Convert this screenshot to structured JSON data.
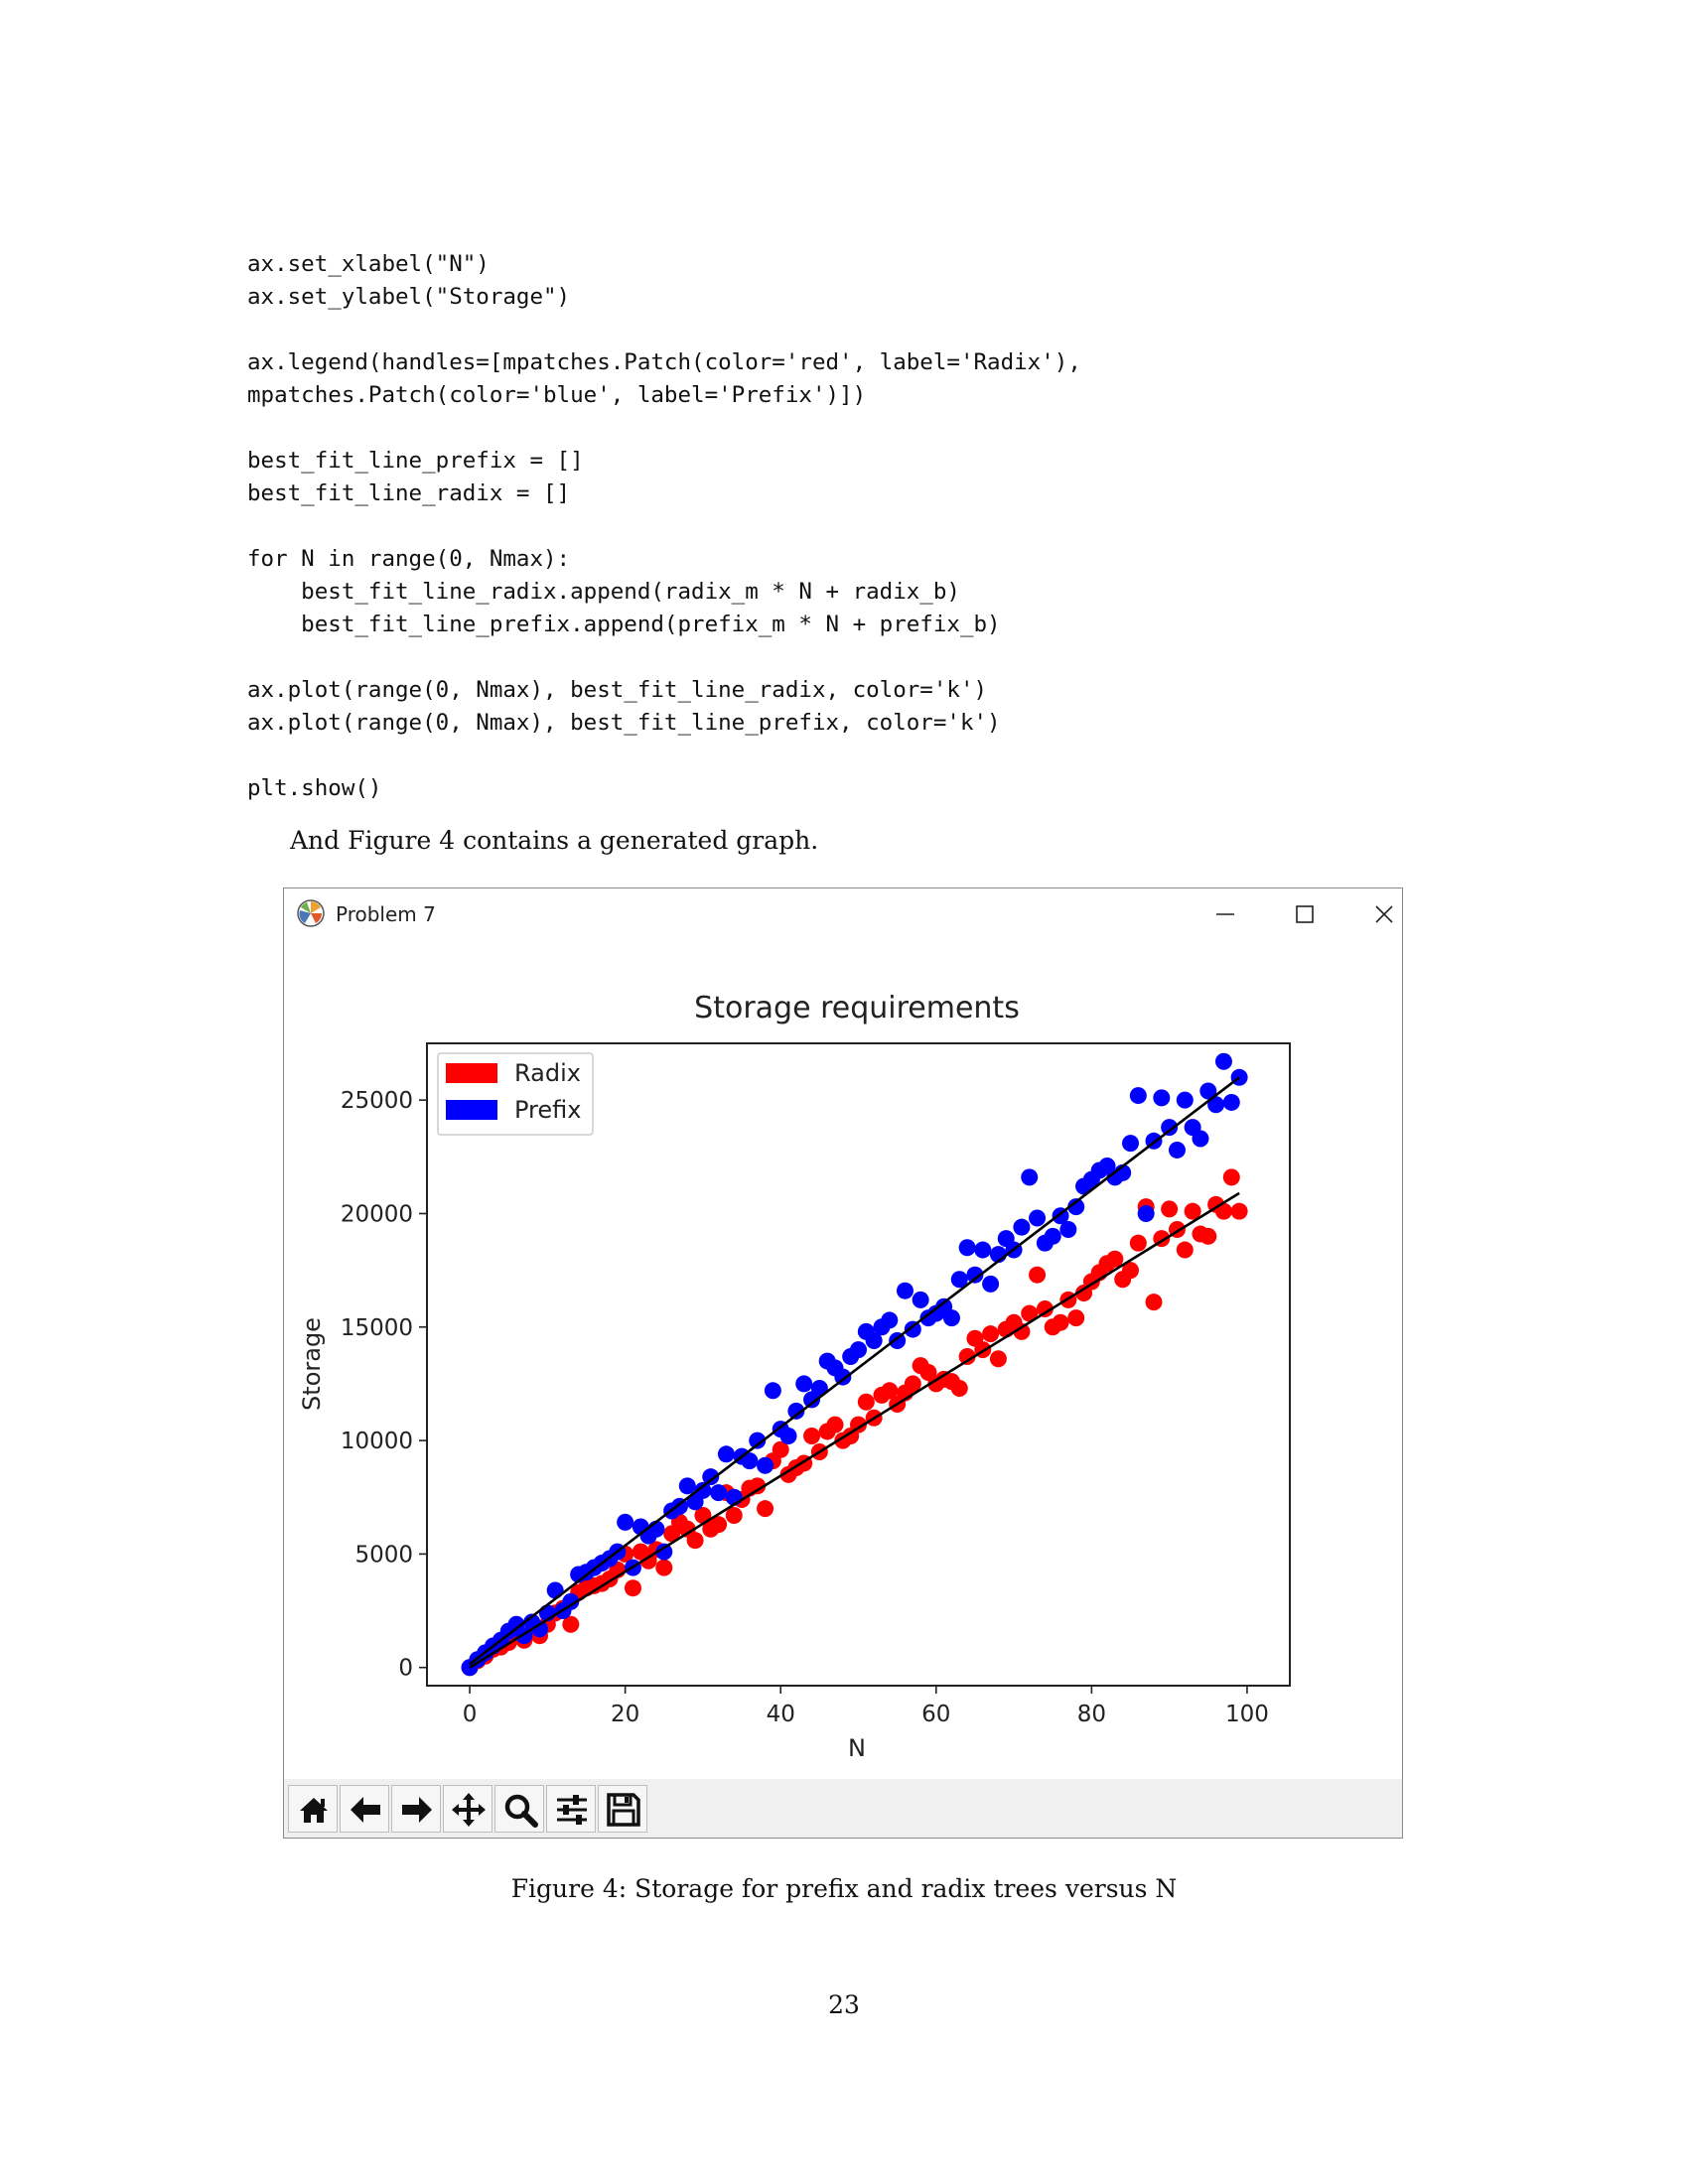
{
  "code_lines": [
    "ax.set_xlabel(\"N\")",
    "ax.set_ylabel(\"Storage\")",
    "",
    "ax.legend(handles=[mpatches.Patch(color='red', label='Radix'),",
    "mpatches.Patch(color='blue', label='Prefix')])",
    "",
    "best_fit_line_prefix = []",
    "best_fit_line_radix = []",
    "",
    "for N in range(0, Nmax):",
    "    best_fit_line_radix.append(radix_m * N + radix_b)",
    "    best_fit_line_prefix.append(prefix_m * N + prefix_b)",
    "",
    "ax.plot(range(0, Nmax), best_fit_line_radix, color='k')",
    "ax.plot(range(0, Nmax), best_fit_line_prefix, color='k')",
    "",
    "plt.show()"
  ],
  "paragraph": "And Figure 4 contains a generated graph.",
  "window": {
    "title": "Problem 7",
    "controls": {
      "minimize": "minimize-icon",
      "maximize": "maximize-icon",
      "close": "close-icon"
    },
    "toolbar_icons": [
      "home-icon",
      "back-arrow-icon",
      "forward-arrow-icon",
      "pan-icon",
      "zoom-icon",
      "configure-subplots-icon",
      "save-icon"
    ]
  },
  "chart_data": {
    "type": "scatter",
    "title": "Storage requirements",
    "xlabel": "N",
    "ylabel": "Storage",
    "xlim": [
      -5.5,
      105.5
    ],
    "ylim": [
      -800,
      27500
    ],
    "xticks": [
      0,
      20,
      40,
      60,
      80,
      100
    ],
    "yticks": [
      0,
      5000,
      10000,
      15000,
      20000,
      25000
    ],
    "grid": false,
    "legend_position": "top-left",
    "series": [
      {
        "name": "Radix",
        "color": "#ff0000",
        "x": [
          0,
          1,
          2,
          3,
          4,
          5,
          6,
          7,
          8,
          9,
          10,
          11,
          12,
          13,
          14,
          15,
          16,
          17,
          18,
          19,
          20,
          21,
          22,
          23,
          24,
          25,
          26,
          27,
          28,
          29,
          30,
          31,
          32,
          33,
          34,
          35,
          36,
          37,
          38,
          39,
          40,
          41,
          42,
          43,
          44,
          45,
          46,
          47,
          48,
          49,
          50,
          51,
          52,
          53,
          54,
          55,
          56,
          57,
          58,
          59,
          60,
          61,
          62,
          63,
          64,
          65,
          66,
          67,
          68,
          69,
          70,
          71,
          72,
          73,
          74,
          75,
          76,
          77,
          78,
          79,
          80,
          81,
          82,
          83,
          84,
          85,
          86,
          87,
          88,
          89,
          90,
          91,
          92,
          93,
          94,
          95,
          96,
          97,
          98,
          99
        ],
        "y": [
          0,
          300,
          500,
          800,
          900,
          1100,
          1500,
          1200,
          1600,
          1400,
          1900,
          2400,
          2600,
          1900,
          3300,
          3500,
          3600,
          3700,
          3900,
          4300,
          5000,
          3500,
          5100,
          4700,
          5200,
          4400,
          5900,
          6400,
          6100,
          5600,
          6700,
          6100,
          6300,
          7700,
          6700,
          7400,
          7900,
          8000,
          7000,
          9100,
          9600,
          8500,
          8800,
          9000,
          10200,
          9500,
          10400,
          10700,
          10000,
          10200,
          10700,
          11700,
          11000,
          12000,
          12200,
          11600,
          12100,
          12500,
          13300,
          13000,
          12500,
          12700,
          12600,
          12300,
          13700,
          14500,
          14000,
          14700,
          13600,
          14900,
          15200,
          14800,
          15600,
          17300,
          15800,
          15000,
          15200,
          16200,
          15400,
          16500,
          17000,
          17400,
          17800,
          18000,
          17100,
          17500,
          18700,
          20300,
          16100,
          18900,
          20200,
          19300,
          18400,
          20100,
          19100,
          19000,
          20400,
          20100,
          21600,
          20100
        ]
      },
      {
        "name": "Prefix",
        "color": "#0000ff",
        "x": [
          0,
          1,
          2,
          3,
          4,
          5,
          6,
          7,
          8,
          9,
          10,
          11,
          12,
          13,
          14,
          15,
          16,
          17,
          18,
          19,
          20,
          21,
          22,
          23,
          24,
          25,
          26,
          27,
          28,
          29,
          30,
          31,
          32,
          33,
          34,
          35,
          36,
          37,
          38,
          39,
          40,
          41,
          42,
          43,
          44,
          45,
          46,
          47,
          48,
          49,
          50,
          51,
          52,
          53,
          54,
          55,
          56,
          57,
          58,
          59,
          60,
          61,
          62,
          63,
          64,
          65,
          66,
          67,
          68,
          69,
          70,
          71,
          72,
          73,
          74,
          75,
          76,
          77,
          78,
          79,
          80,
          81,
          82,
          83,
          84,
          85,
          86,
          87,
          88,
          89,
          90,
          91,
          92,
          93,
          94,
          95,
          96,
          97,
          98,
          99
        ],
        "y": [
          0,
          350,
          650,
          950,
          1200,
          1600,
          1900,
          1400,
          2000,
          1700,
          2400,
          3400,
          2500,
          2900,
          4100,
          4200,
          4400,
          4600,
          4800,
          5100,
          6400,
          4400,
          6200,
          5800,
          6100,
          5100,
          6900,
          7100,
          8000,
          7300,
          7800,
          8400,
          7700,
          9400,
          7500,
          9300,
          9100,
          10000,
          8900,
          12200,
          10500,
          10200,
          11300,
          12500,
          11800,
          12300,
          13500,
          13200,
          12800,
          13700,
          14000,
          14800,
          14400,
          15000,
          15300,
          14400,
          16600,
          14900,
          16200,
          15400,
          15600,
          15900,
          15400,
          17100,
          18500,
          17300,
          18400,
          16900,
          18200,
          18900,
          18400,
          19400,
          21600,
          19800,
          18700,
          19000,
          19900,
          19300,
          20300,
          21200,
          21500,
          21900,
          22100,
          21600,
          21800,
          23100,
          25200,
          20000,
          23200,
          25100,
          23800,
          22800,
          25000,
          23800,
          23300,
          25400,
          24800,
          26700,
          24900,
          26000
        ]
      }
    ],
    "fit_lines": [
      {
        "series": "Radix",
        "x": [
          0,
          99
        ],
        "y": [
          0,
          20900
        ],
        "color": "#000000"
      },
      {
        "series": "Prefix",
        "x": [
          0,
          99
        ],
        "y": [
          150,
          26000
        ],
        "color": "#000000"
      }
    ]
  },
  "caption": "Figure 4: Storage for prefix and radix trees versus N",
  "page_number": "23"
}
